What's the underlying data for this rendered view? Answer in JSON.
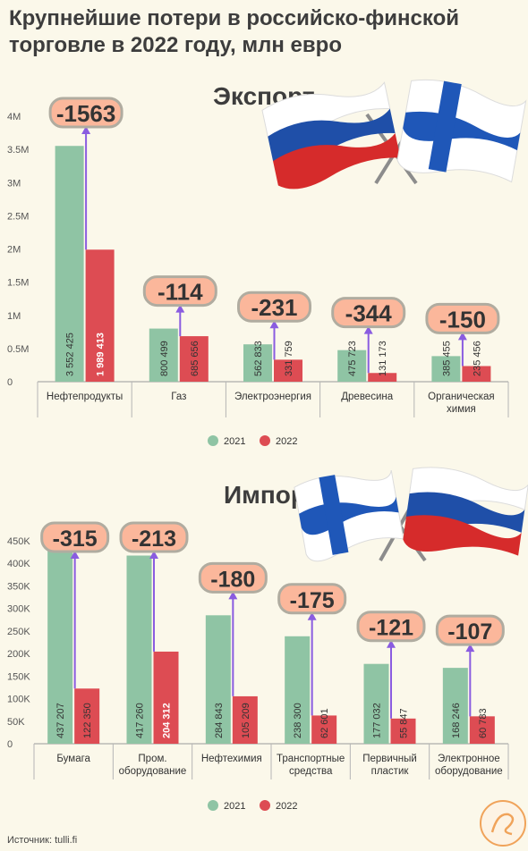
{
  "title": "Крупнейшие потери в российско-финской торговле в 2022 году, млн евро",
  "source": "Источник: tulli.fi",
  "colors": {
    "y2021": "#8fc4a4",
    "y2022": "#dd4c53",
    "badge": "#fbb79b",
    "badge_border": "#b0aca0",
    "arrow": "#8a5ce0"
  },
  "charts": [
    {
      "id": "export",
      "section_title": "Экспорт",
      "legend": [
        "2021",
        "2022"
      ],
      "ticks": [
        "0",
        "0.5M",
        "1M",
        "1.5M",
        "2M",
        "2.5M",
        "3M",
        "3.5M",
        "4M"
      ],
      "categories": [
        {
          "label": [
            "Нефтепродукты"
          ],
          "v2021": 3552425,
          "v2022": 1989413,
          "l2021": "3 552 425",
          "l2022": "1 989 413",
          "loss": "-1563"
        },
        {
          "label": [
            "Газ"
          ],
          "v2021": 800499,
          "v2022": 685656,
          "l2021": "800 499",
          "l2022": "685 656",
          "loss": "-114"
        },
        {
          "label": [
            "Электроэнергия"
          ],
          "v2021": 562833,
          "v2022": 331759,
          "l2021": "562 833",
          "l2022": "331 759",
          "loss": "-231"
        },
        {
          "label": [
            "Древесина"
          ],
          "v2021": 475723,
          "v2022": 131173,
          "l2021": "475 723",
          "l2022": "131 173",
          "loss": "-344"
        },
        {
          "label": [
            "Органическая",
            "химия"
          ],
          "v2021": 385455,
          "v2022": 235456,
          "l2021": "385 455",
          "l2022": "235 456",
          "loss": "-150"
        }
      ]
    },
    {
      "id": "import",
      "section_title": "Импорт",
      "legend": [
        "2021",
        "2022"
      ],
      "ticks": [
        "0",
        "50K",
        "100K",
        "150K",
        "200K",
        "250K",
        "300K",
        "350K",
        "400K",
        "450K"
      ],
      "categories": [
        {
          "label": [
            "Бумага"
          ],
          "v2021": 437207,
          "v2022": 122350,
          "l2021": "437 207",
          "l2022": "122 350",
          "loss": "-315"
        },
        {
          "label": [
            "Пром.",
            "оборудование"
          ],
          "v2021": 417260,
          "v2022": 204312,
          "l2021": "417 260",
          "l2022": "204 312",
          "loss": "-213"
        },
        {
          "label": [
            "Нефтехимия"
          ],
          "v2021": 284843,
          "v2022": 105209,
          "l2021": "284 843",
          "l2022": "105 209",
          "loss": "-180"
        },
        {
          "label": [
            "Транспортные",
            "средства"
          ],
          "v2021": 238300,
          "v2022": 62601,
          "l2021": "238 300",
          "l2022": "62 601",
          "loss": "-175"
        },
        {
          "label": [
            "Первичный",
            "пластик"
          ],
          "v2021": 177032,
          "v2022": 55847,
          "l2021": "177 032",
          "l2022": "55 847",
          "loss": "-121"
        },
        {
          "label": [
            "Электронное",
            "оборудование"
          ],
          "v2021": 168246,
          "v2022": 60783,
          "l2021": "168 246",
          "l2022": "60 783",
          "loss": "-107"
        }
      ]
    }
  ],
  "chart_data": [
    {
      "type": "bar",
      "title": "Экспорт",
      "categories": [
        "Нефтепродукты",
        "Газ",
        "Электроэнергия",
        "Древесина",
        "Органическая химия"
      ],
      "series": [
        {
          "name": "2021",
          "values": [
            3552425,
            800499,
            562833,
            475723,
            385455
          ]
        },
        {
          "name": "2022",
          "values": [
            1989413,
            685656,
            331759,
            131173,
            235456
          ]
        }
      ],
      "annotations": [
        "-1563",
        "-114",
        "-231",
        "-344",
        "-150"
      ],
      "ylim": [
        0,
        4000000
      ],
      "legend": "bottom"
    },
    {
      "type": "bar",
      "title": "Импорт",
      "categories": [
        "Бумага",
        "Пром. оборудование",
        "Нефтехимия",
        "Транспортные средства",
        "Первичный пластик",
        "Электронное оборудование"
      ],
      "series": [
        {
          "name": "2021",
          "values": [
            437207,
            417260,
            284843,
            238300,
            177032,
            168246
          ]
        },
        {
          "name": "2022",
          "values": [
            122350,
            204312,
            105209,
            62601,
            55847,
            60783
          ]
        }
      ],
      "annotations": [
        "-315",
        "-213",
        "-180",
        "-175",
        "-121",
        "-107"
      ],
      "ylim": [
        0,
        450000
      ],
      "legend": "bottom"
    }
  ]
}
